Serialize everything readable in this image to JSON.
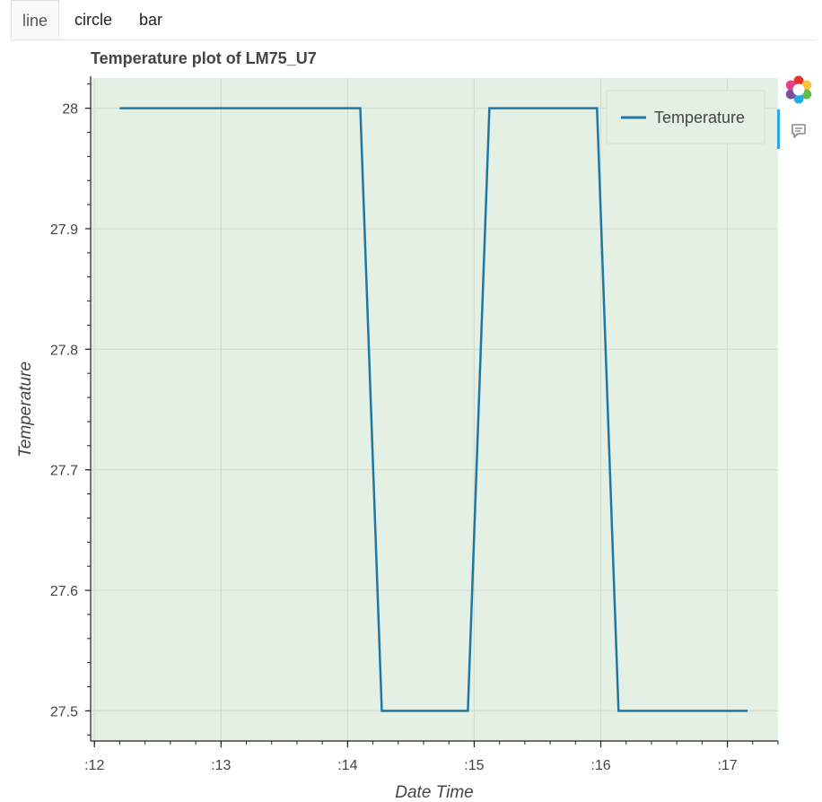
{
  "tabs": [
    {
      "label": "line",
      "active": true
    },
    {
      "label": "circle",
      "active": false
    },
    {
      "label": "bar",
      "active": false
    }
  ],
  "toolbar": {
    "icons": [
      "bokeh-logo-icon",
      "hover-tooltip-icon"
    ]
  },
  "colors": {
    "line": "#1f77a3",
    "plot_background": "#e5f0e5",
    "grid": "#d3dcd3"
  },
  "chart_data": {
    "type": "line",
    "title": "Temperature plot of LM75_U7",
    "xlabel": "Date Time",
    "ylabel": "Temperature",
    "x_ticks": [
      ":12",
      ":13",
      ":14",
      ":15",
      ":16",
      ":17"
    ],
    "x_tick_values": [
      12,
      13,
      14,
      15,
      16,
      17
    ],
    "xlim": [
      11.97,
      17.4
    ],
    "y_ticks": [
      "27.5",
      "27.6",
      "27.7",
      "27.8",
      "27.9",
      "28"
    ],
    "y_tick_values": [
      27.5,
      27.6,
      27.7,
      27.8,
      27.9,
      28.0
    ],
    "ylim": [
      27.475,
      28.025
    ],
    "grid": true,
    "legend_position": "top-right",
    "series": [
      {
        "name": "Temperature",
        "x": [
          12.2,
          14.1,
          14.27,
          14.95,
          15.12,
          15.97,
          16.14,
          17.16
        ],
        "values": [
          28.0,
          28.0,
          27.5,
          27.5,
          28.0,
          28.0,
          27.5,
          27.5
        ]
      }
    ]
  }
}
